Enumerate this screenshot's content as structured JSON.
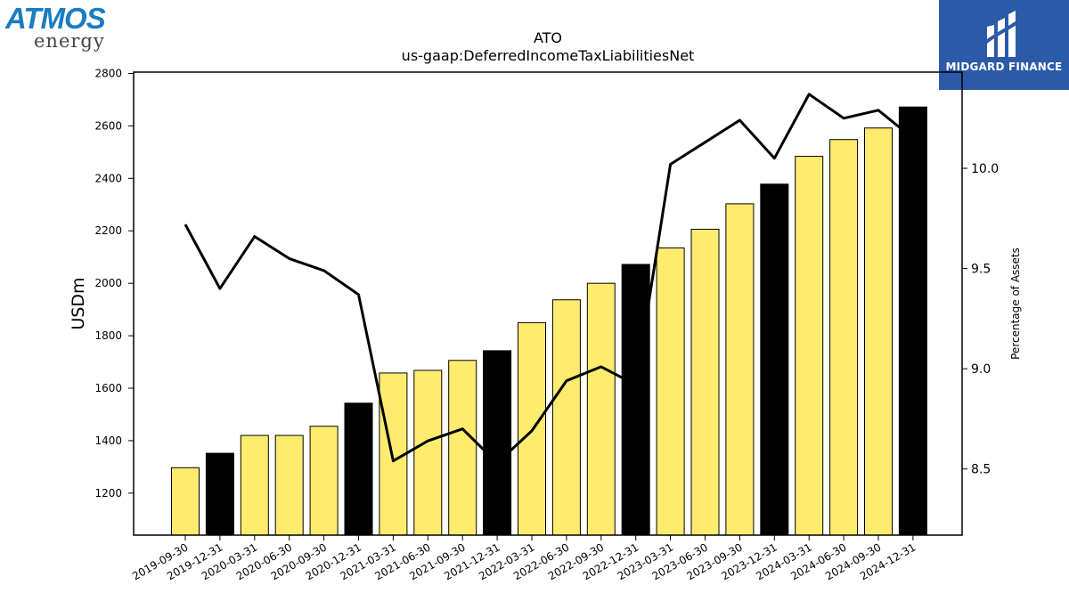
{
  "logos": {
    "left_word": "ATMOS",
    "left_sub": "energy",
    "right_text": "MIDGARD FINANCE"
  },
  "chart_data": {
    "type": "bar",
    "title": "ATO",
    "subtitle": "us-gaap:DeferredIncomeTaxLiabilitiesNet",
    "ylabel": "USDm",
    "y2label": "Percentage of Assets",
    "ylim": [
      1040,
      2805
    ],
    "y2lim": [
      8.17,
      10.48
    ],
    "yticks": [
      1200,
      1400,
      1600,
      1800,
      2000,
      2200,
      2400,
      2600,
      2800
    ],
    "y2ticks": [
      8.5,
      9.0,
      9.5,
      10.0
    ],
    "categories": [
      "2019-09-30",
      "2019-12-31",
      "2020-03-31",
      "2020-06-30",
      "2020-09-30",
      "2020-12-31",
      "2021-03-31",
      "2021-06-30",
      "2021-09-30",
      "2021-12-31",
      "2022-03-31",
      "2022-06-30",
      "2022-09-30",
      "2022-12-31",
      "2023-03-31",
      "2023-06-30",
      "2023-09-30",
      "2023-12-31",
      "2024-03-31",
      "2024-06-30",
      "2024-09-30",
      "2024-12-31"
    ],
    "series": [
      {
        "type": "bar",
        "values": [
          1297,
          1352,
          1420,
          1420,
          1455,
          1543,
          1658,
          1668,
          1706,
          1743,
          1850,
          1937,
          2000,
          2072,
          2135,
          2206,
          2303,
          2378,
          2484,
          2548,
          2592,
          2672
        ],
        "highlight": [
          false,
          true,
          false,
          false,
          false,
          true,
          false,
          false,
          false,
          true,
          false,
          false,
          false,
          true,
          false,
          false,
          false,
          true,
          false,
          false,
          false,
          true
        ]
      },
      {
        "type": "line",
        "axis": "right",
        "values": [
          9.72,
          9.4,
          9.66,
          9.55,
          9.49,
          9.37,
          8.54,
          8.64,
          8.7,
          8.53,
          8.69,
          8.94,
          9.01,
          8.92,
          10.02,
          10.13,
          10.24,
          10.05,
          10.37,
          10.25,
          10.29,
          10.15
        ]
      }
    ],
    "colors": {
      "bar": "#ffec6e",
      "bar_highlight": "#000000",
      "line": "#000000",
      "bar_edge": "#000000"
    },
    "grid": false
  }
}
